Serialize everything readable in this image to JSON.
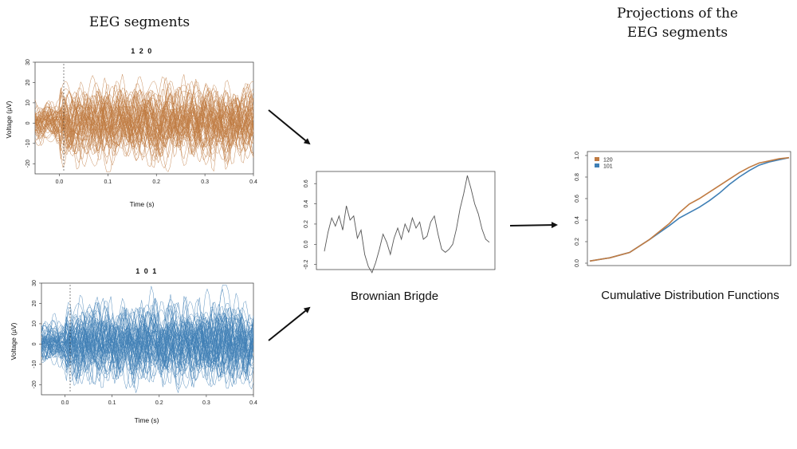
{
  "headings": {
    "left": "EEG segments",
    "right_line1": "Projections of the",
    "right_line2": "EEG segments"
  },
  "captions": {
    "middle": "Brownian Brigde",
    "right": "Cumulative Distribution Functions"
  },
  "colors": {
    "series_120": "#c07b42",
    "series_101": "#3f7fb5",
    "bridge": "#555555"
  },
  "eeg_top": {
    "title": "1 2 0",
    "xlabel": "Time (s)",
    "ylabel": "Voltage (µV)",
    "xticks": [
      "0.0",
      "0.1",
      "0.2",
      "0.3",
      "0.4"
    ],
    "yticks": [
      "30",
      "20",
      "10",
      "0",
      "-10",
      "-20"
    ]
  },
  "eeg_bottom": {
    "title": "1 0 1",
    "xlabel": "Time (s)",
    "ylabel": "Voltage (µV)",
    "xticks": [
      "0.0",
      "0.1",
      "0.2",
      "0.3",
      "0.4"
    ],
    "yticks": [
      "30",
      "20",
      "10",
      "0",
      "-10",
      "-20"
    ]
  },
  "bridge_plot": {
    "yticks": [
      "0.6",
      "0.4",
      "0.2",
      "0.0",
      "-0.2"
    ]
  },
  "cdf_plot": {
    "yticks": [
      "1.0",
      "0.8",
      "0.6",
      "0.4",
      "0.2",
      "0.0"
    ],
    "legend": [
      "120",
      "101"
    ]
  },
  "chart_data": [
    {
      "type": "line",
      "title": "1 2 0",
      "xlabel": "Time (s)",
      "ylabel": "Voltage (µV)",
      "xlim": [
        -0.05,
        0.4
      ],
      "ylim": [
        -25,
        30
      ],
      "note_series": "overlaid EEG trial traces",
      "series_count": 60
    },
    {
      "type": "line",
      "title": "1 0 1",
      "xlabel": "Time (s)",
      "ylabel": "Voltage (µV)",
      "xlim": [
        -0.05,
        0.4
      ],
      "ylim": [
        -25,
        30
      ],
      "series_count": 60
    },
    {
      "type": "line",
      "ylim": [
        -0.25,
        0.72
      ],
      "series": [
        {
          "values": [
            -0.07,
            0.12,
            0.26,
            0.18,
            0.28,
            0.14,
            0.38,
            0.24,
            0.28,
            0.06,
            0.14,
            -0.1,
            -0.22,
            -0.28,
            -0.18,
            -0.05,
            0.1,
            0.02,
            -0.1,
            0.06,
            0.16,
            0.05,
            0.2,
            0.12,
            0.26,
            0.16,
            0.22,
            0.05,
            0.08,
            0.22,
            0.28,
            0.1,
            -0.05,
            -0.08,
            -0.05,
            0.0,
            0.15,
            0.35,
            0.5,
            0.68,
            0.55,
            0.4,
            0.3,
            0.15,
            0.05,
            0.02
          ]
        }
      ]
    },
    {
      "type": "line",
      "xlim": [
        0,
        1
      ],
      "ylim": [
        0,
        1
      ],
      "series": [
        {
          "name": "120",
          "x": [
            0.0,
            0.1,
            0.2,
            0.3,
            0.4,
            0.45,
            0.5,
            0.55,
            0.6,
            0.65,
            0.7,
            0.75,
            0.8,
            0.85,
            0.9,
            0.95,
            1.0
          ],
          "values": [
            0.02,
            0.05,
            0.1,
            0.22,
            0.37,
            0.47,
            0.55,
            0.6,
            0.66,
            0.72,
            0.78,
            0.84,
            0.89,
            0.93,
            0.95,
            0.97,
            0.98
          ]
        },
        {
          "name": "101",
          "x": [
            0.0,
            0.1,
            0.2,
            0.3,
            0.4,
            0.45,
            0.5,
            0.55,
            0.6,
            0.65,
            0.7,
            0.75,
            0.8,
            0.85,
            0.9,
            0.95,
            1.0
          ],
          "values": [
            0.02,
            0.05,
            0.1,
            0.22,
            0.35,
            0.42,
            0.47,
            0.52,
            0.58,
            0.65,
            0.73,
            0.8,
            0.86,
            0.91,
            0.94,
            0.96,
            0.98
          ]
        }
      ]
    }
  ]
}
